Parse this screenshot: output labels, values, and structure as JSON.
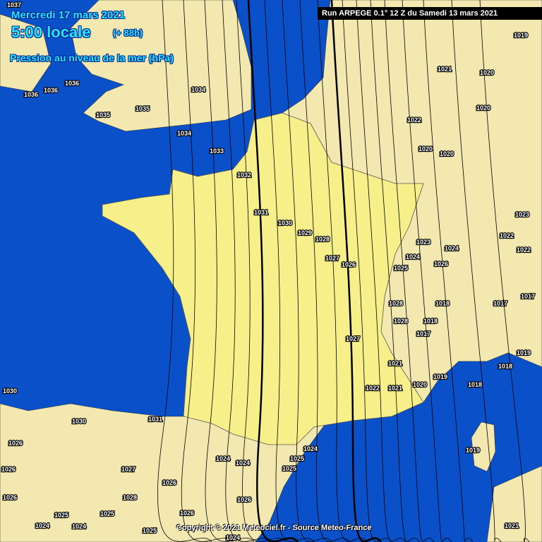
{
  "header": {
    "date": "Mercredi 17 mars 2021",
    "time": "5:00 locale",
    "lead": "(+ 88h)",
    "parameter": "Pression au niveau de la mer (hPa)"
  },
  "run_info": "Run ARPEGE 0.1° 12 Z du Samedi 13 mars 2021",
  "copyright": "Copyright © 2021 Meteociel.fr - Source Meteo-France",
  "colors": {
    "sea": "#0a50c8",
    "land": "#f3e8b0",
    "france": "#f7f08a",
    "isobar": "#000000",
    "header_text": "#28e6ff"
  },
  "isobar_labels": [
    "1037",
    "1036",
    "1036",
    "1036",
    "1035",
    "1035",
    "1034",
    "1034",
    "1033",
    "1032",
    "1031",
    "1030",
    "1029",
    "1028",
    "1027",
    "1026",
    "1025",
    "1024",
    "1023",
    "1022",
    "1021",
    "1020",
    "1020",
    "1020",
    "1020",
    "1019",
    "1028",
    "1028",
    "1018",
    "1018",
    "1017",
    "1017",
    "1017",
    "1027",
    "1019",
    "1018",
    "1019",
    "1018",
    "1021",
    "1021",
    "1022",
    "1020",
    "1030",
    "1030",
    "1031",
    "1026",
    "1026",
    "1026",
    "1027",
    "1026",
    "1028",
    "1025",
    "1025",
    "1024",
    "1024",
    "1025",
    "1026",
    "1024",
    "1026",
    "1025",
    "1025",
    "1024",
    "1024",
    "1024",
    "1019",
    "1021",
    "1022",
    "1023",
    "1022",
    "1024",
    "1026"
  ]
}
